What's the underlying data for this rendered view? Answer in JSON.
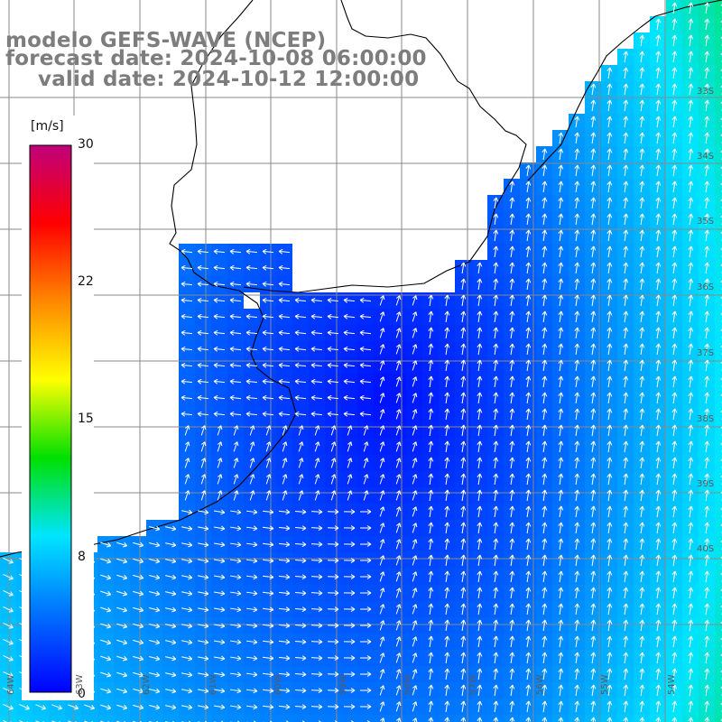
{
  "title": {
    "line1": "modelo GEFS-WAVE (NCEP)",
    "line2": "forecast date: 2024-10-08 06:00:00",
    "line3": "valid date: 2024-10-12 12:00:00"
  },
  "colorbar": {
    "units": "[m/s]",
    "ticks": [
      "30",
      "22",
      "15",
      "8",
      "0"
    ],
    "tick_values": [
      30,
      22,
      15,
      8,
      0
    ],
    "vmin": 0,
    "vmax": 30,
    "colors": [
      "#0000ff",
      "#0070ff",
      "#00e5ff",
      "#00e000",
      "#ffff00",
      "#ff8800",
      "#ff0000",
      "#c0007a"
    ]
  },
  "map": {
    "field": "wind speed and direction",
    "background_color": "#ffffff",
    "land_color": "#ffffff",
    "coastline_color": "#000000",
    "grid_color": "#808080",
    "latitude_labels": [
      "33S",
      "34S",
      "35S",
      "36S",
      "37S",
      "38S",
      "39S",
      "40S"
    ],
    "longitude_labels": [
      "64W",
      "63W",
      "62W",
      "61W",
      "60W",
      "59W",
      "58W",
      "57W",
      "56W",
      "55W",
      "54W"
    ],
    "lat_range": [
      -41,
      -30
    ],
    "lon_range": [
      -65,
      -54
    ],
    "wind_speed_range_ms": [
      0,
      8.5
    ]
  }
}
